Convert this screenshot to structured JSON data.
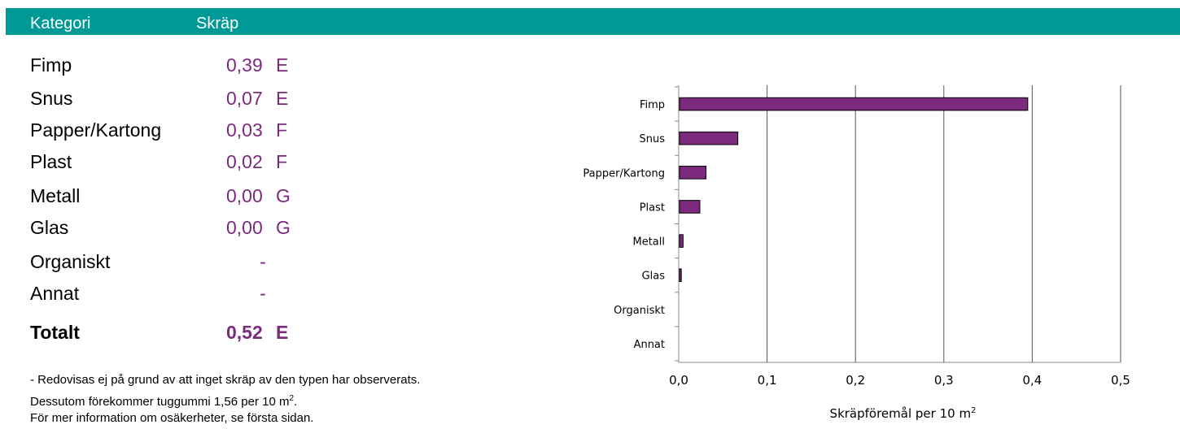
{
  "header": {
    "col_category": "Kategori",
    "col_litter": "Skräp"
  },
  "table": {
    "rows": [
      {
        "label": "Fimp",
        "value": "0,39",
        "grade": "E"
      },
      {
        "label": "Snus",
        "value": "0,07",
        "grade": "E"
      },
      {
        "label": "Papper/Kartong",
        "value": "0,03",
        "grade": "F"
      },
      {
        "label": "Plast",
        "value": "0,02",
        "grade": "F"
      },
      {
        "label": "Metall",
        "value": "0,00",
        "grade": "G"
      },
      {
        "label": "Glas",
        "value": "0,00",
        "grade": "G"
      },
      {
        "label": "Organiskt",
        "value": "-",
        "grade": ""
      },
      {
        "label": "Annat",
        "value": "-",
        "grade": ""
      }
    ],
    "total": {
      "label": "Totalt",
      "value": "0,52",
      "grade": "E"
    }
  },
  "footnotes": {
    "line1": "- Redovisas ej på grund av att inget skräp av den typen har observerats.",
    "line2_prefix": "Dessutom förekommer tuggummi  1,56 per 10 m",
    "line2_sup": "2",
    "line2_suffix": ".",
    "line3": "För mer information om osäkerheter, se första sidan."
  },
  "colors": {
    "header_bg": "#009a96",
    "accent": "#7b2a7d",
    "bar_fill": "#7b2a7d"
  },
  "chart_data": {
    "type": "bar",
    "orientation": "horizontal",
    "categories": [
      "Fimp",
      "Snus",
      "Papper/Kartong",
      "Plast",
      "Metall",
      "Glas",
      "Organiskt",
      "Annat"
    ],
    "values": [
      0.394,
      0.066,
      0.03,
      0.023,
      0.004,
      0.002,
      0.0,
      0.0
    ],
    "tick_labels": [
      "0,0",
      "0,1",
      "0,2",
      "0,3",
      "0,4",
      "0,5"
    ],
    "xlim": [
      0,
      0.5
    ],
    "xlabel": "Skräpföremål per 10 m",
    "xlabel_sup": "2",
    "grid": "vertical"
  }
}
